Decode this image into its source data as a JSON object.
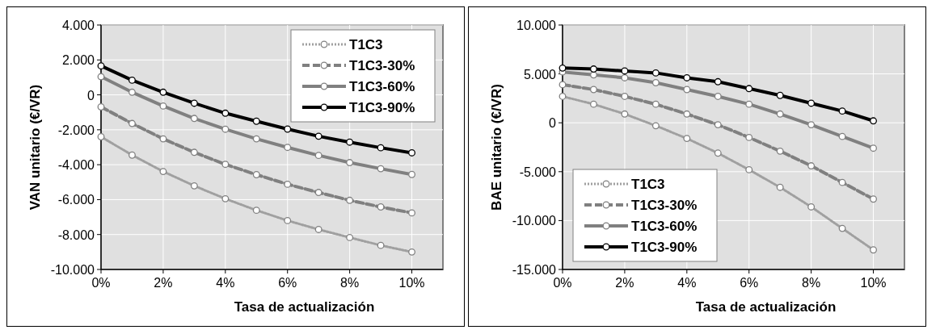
{
  "chart_data": [
    {
      "type": "line",
      "xlabel": "Tasa de actualización",
      "ylabel": "VAN  unitario (€/VR)",
      "x": [
        0,
        1,
        2,
        3,
        4,
        5,
        6,
        7,
        8,
        9,
        10
      ],
      "xlim": [
        0,
        11
      ],
      "xticks": [
        {
          "value": 0,
          "label": "0%"
        },
        {
          "value": 2,
          "label": "2%"
        },
        {
          "value": 4,
          "label": "4%"
        },
        {
          "value": 6,
          "label": "6%"
        },
        {
          "value": 8,
          "label": "8%"
        },
        {
          "value": 10,
          "label": "10%"
        }
      ],
      "ylim": [
        -10000,
        4000
      ],
      "yticks": [
        {
          "value": -10000,
          "label": "-10.000"
        },
        {
          "value": -8000,
          "label": "-8.000"
        },
        {
          "value": -6000,
          "label": "-6.000"
        },
        {
          "value": -4000,
          "label": "-4.000"
        },
        {
          "value": -2000,
          "label": "-2.000"
        },
        0,
        {
          "value": 2000,
          "label": "2.000"
        },
        {
          "value": 4000,
          "label": "4.000"
        }
      ],
      "grid": true,
      "legend": "top right",
      "marker": "circle",
      "series": [
        {
          "name": "T1C3",
          "color": "#a0a0a0",
          "line_style": "dotted",
          "values": [
            -2400,
            -3450,
            -4390,
            -5210,
            -5950,
            -6610,
            -7200,
            -7710,
            -8170,
            -8620,
            -9000
          ]
        },
        {
          "name": "T1C3-30%",
          "color": "#808080",
          "line_style": "dashed",
          "values": [
            -690,
            -1640,
            -2520,
            -3290,
            -3980,
            -4570,
            -5120,
            -5590,
            -6040,
            -6420,
            -6760
          ]
        },
        {
          "name": "T1C3-60%",
          "color": "#808080",
          "line_style": "solid",
          "values": [
            1040,
            150,
            -640,
            -1350,
            -1970,
            -2520,
            -3010,
            -3470,
            -3880,
            -4230,
            -4560
          ]
        },
        {
          "name": "T1C3-90%",
          "color": "#000000",
          "line_style": "solid",
          "values": [
            1660,
            840,
            150,
            -480,
            -1050,
            -1510,
            -1960,
            -2370,
            -2710,
            -3030,
            -3320
          ]
        }
      ]
    },
    {
      "type": "line",
      "xlabel": "Tasa de actualización",
      "ylabel": "BAE  unitario (€/VR)",
      "x": [
        0,
        1,
        2,
        3,
        4,
        5,
        6,
        7,
        8,
        9,
        10
      ],
      "xlim": [
        0,
        11
      ],
      "xticks": [
        {
          "value": 0,
          "label": "0%"
        },
        {
          "value": 2,
          "label": "2%"
        },
        {
          "value": 4,
          "label": "4%"
        },
        {
          "value": 6,
          "label": "6%"
        },
        {
          "value": 8,
          "label": "8%"
        },
        {
          "value": 10,
          "label": "10%"
        }
      ],
      "ylim": [
        -15000,
        10000
      ],
      "yticks": [
        {
          "value": -15000,
          "label": "-15.000"
        },
        {
          "value": -10000,
          "label": "-10.000"
        },
        {
          "value": -5000,
          "label": "-5.000"
        },
        0,
        {
          "value": 5000,
          "label": "5.000"
        },
        {
          "value": 10000,
          "label": "10.000"
        }
      ],
      "grid": true,
      "legend": "bottom left",
      "marker": "circle",
      "series": [
        {
          "name": "T1C3",
          "color": "#a0a0a0",
          "line_style": "dotted",
          "values": [
            2700,
            1900,
            900,
            -300,
            -1600,
            -3100,
            -4800,
            -6600,
            -8600,
            -10800,
            -13000
          ]
        },
        {
          "name": "T1C3-30%",
          "color": "#808080",
          "line_style": "dashed",
          "values": [
            3900,
            3400,
            2700,
            1900,
            900,
            -200,
            -1500,
            -2900,
            -4400,
            -6100,
            -7800
          ]
        },
        {
          "name": "T1C3-60%",
          "color": "#808080",
          "line_style": "solid",
          "values": [
            5200,
            4900,
            4600,
            4100,
            3400,
            2700,
            1900,
            900,
            -200,
            -1400,
            -2600
          ]
        },
        {
          "name": "T1C3-90%",
          "color": "#000000",
          "line_style": "solid",
          "values": [
            5600,
            5500,
            5300,
            5100,
            4600,
            4200,
            3500,
            2800,
            2000,
            1200,
            200
          ]
        }
      ]
    }
  ]
}
